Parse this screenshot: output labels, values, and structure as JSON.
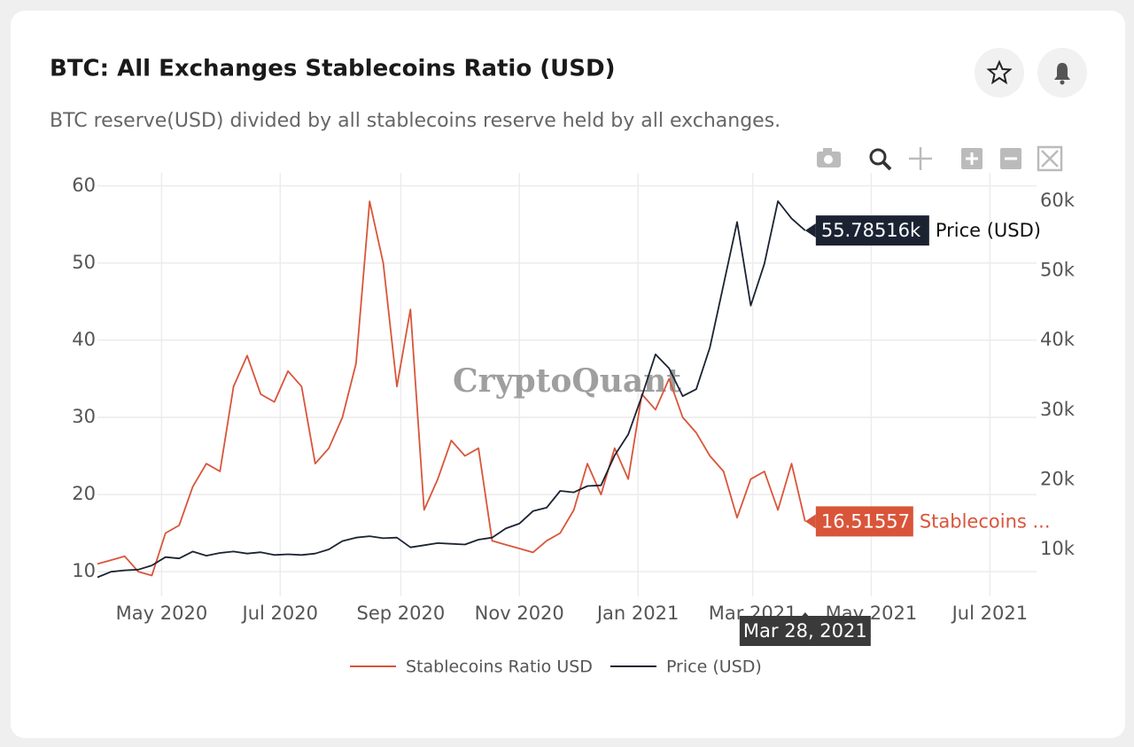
{
  "header": {
    "title": "BTC: All Exchanges Stablecoins Ratio (USD)",
    "subtitle": "BTC reserve(USD) divided by all stablecoins reserve held by all exchanges."
  },
  "chart_data": {
    "type": "line",
    "watermark": "CryptoQuant",
    "x": [
      "2020-03-29",
      "2020-04-05",
      "2020-04-12",
      "2020-04-19",
      "2020-04-26",
      "2020-05-03",
      "2020-05-10",
      "2020-05-17",
      "2020-05-24",
      "2020-05-31",
      "2020-06-07",
      "2020-06-14",
      "2020-06-21",
      "2020-06-28",
      "2020-07-05",
      "2020-07-12",
      "2020-07-19",
      "2020-07-26",
      "2020-08-02",
      "2020-08-09",
      "2020-08-16",
      "2020-08-23",
      "2020-08-30",
      "2020-09-06",
      "2020-09-13",
      "2020-09-20",
      "2020-09-27",
      "2020-10-04",
      "2020-10-11",
      "2020-10-18",
      "2020-10-25",
      "2020-11-01",
      "2020-11-08",
      "2020-11-15",
      "2020-11-22",
      "2020-11-29",
      "2020-12-06",
      "2020-12-13",
      "2020-12-20",
      "2020-12-27",
      "2021-01-03",
      "2021-01-10",
      "2021-01-17",
      "2021-01-24",
      "2021-01-31",
      "2021-02-07",
      "2021-02-14",
      "2021-02-21",
      "2021-02-28",
      "2021-03-07",
      "2021-03-14",
      "2021-03-21",
      "2021-03-28"
    ],
    "series": [
      {
        "name": "Stablecoins Ratio USD",
        "color": "#d9553a",
        "axis": "y",
        "values": [
          11,
          11.5,
          12,
          10,
          9.5,
          15,
          16,
          21,
          24,
          23,
          34,
          38,
          33,
          32,
          36,
          34,
          24,
          26,
          30,
          37,
          58,
          50,
          34,
          44,
          18,
          22,
          27,
          25,
          26,
          14,
          13.5,
          13,
          12.5,
          14,
          15,
          18,
          24,
          20,
          26,
          22,
          33,
          31,
          35,
          30,
          28,
          25,
          23,
          17,
          22,
          23,
          18,
          24,
          16.51557
        ]
      },
      {
        "name": "Price (USD)",
        "color": "#1b2333",
        "axis": "y2",
        "values": [
          6000,
          6800,
          7000,
          7100,
          7700,
          8900,
          8700,
          9700,
          9100,
          9500,
          9700,
          9400,
          9600,
          9200,
          9300,
          9200,
          9400,
          10000,
          11200,
          11700,
          11900,
          11600,
          11700,
          10300,
          10600,
          10900,
          10800,
          10700,
          11400,
          11700,
          13000,
          13700,
          15500,
          16000,
          18400,
          18200,
          19100,
          19200,
          23500,
          26500,
          32000,
          38000,
          36000,
          32000,
          33000,
          39000,
          48000,
          57000,
          45000,
          51000,
          60000,
          57500,
          55785.16
        ]
      }
    ],
    "xlim": [
      "2020-03-29",
      "2021-07-25"
    ],
    "xticks": [
      {
        "value": "2020-05-01",
        "label": "May 2020"
      },
      {
        "value": "2020-07-01",
        "label": "Jul 2020"
      },
      {
        "value": "2020-09-01",
        "label": "Sep 2020"
      },
      {
        "value": "2020-11-01",
        "label": "Nov 2020"
      },
      {
        "value": "2021-01-01",
        "label": "Jan 2021"
      },
      {
        "value": "2021-03-01",
        "label": "Mar 2021"
      },
      {
        "value": "2021-05-01",
        "label": "May 2021"
      },
      {
        "value": "2021-07-01",
        "label": "Jul 2021"
      }
    ],
    "ylim": [
      6.8,
      61.7
    ],
    "yticks": [
      10,
      20,
      30,
      40,
      50,
      60
    ],
    "y2lim": [
      3260,
      64070
    ],
    "y2ticks": [
      {
        "value": 10000,
        "label": "10k"
      },
      {
        "value": 20000,
        "label": "20k"
      },
      {
        "value": 30000,
        "label": "30k"
      },
      {
        "value": 40000,
        "label": "40k"
      },
      {
        "value": 50000,
        "label": "50k"
      },
      {
        "value": 60000,
        "label": "60k"
      }
    ],
    "grid": true,
    "hover": {
      "x_label": "Mar 28, 2021",
      "value_labels": [
        "16.51557",
        "55.78516k"
      ],
      "names": [
        "Stablecoins ...",
        "Price (USD)"
      ]
    }
  }
}
